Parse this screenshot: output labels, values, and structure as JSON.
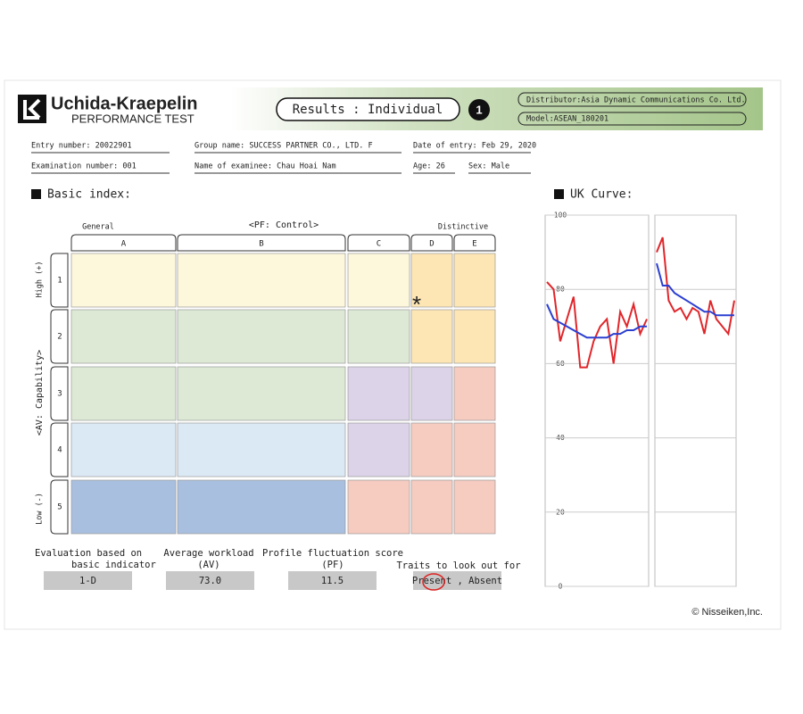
{
  "header": {
    "brand": "Uchida-Kraepelin",
    "subbrand": "PERFORMANCE TEST",
    "title": "Results : Individual",
    "badge": "1",
    "distributor": "Distributor:Asia Dynamic Communications Co. Ltd.",
    "model": "Model:ASEAN_180201"
  },
  "info": {
    "entry": "Entry number: 20022901",
    "group": "Group name: SUCCESS PARTNER CO., LTD. F",
    "date": "Date of entry: Feb 29, 2020",
    "exam": "Examination number: 001",
    "name": "Name of examinee: Chau Hoai Nam",
    "age": "Age: 26",
    "sex": "Sex: Male"
  },
  "basic_index": {
    "heading": "Basic index:",
    "general": "General",
    "control": "<PF: Control>",
    "distinctive": "Distinctive",
    "columns": [
      "A",
      "B",
      "C",
      "D",
      "E"
    ],
    "rows": [
      "1",
      "2",
      "3",
      "4",
      "5"
    ],
    "high": "High (+)",
    "capability": "<AV: Capability>",
    "low": "Low (-)",
    "marker": "*"
  },
  "results": [
    {
      "label": [
        "Evaluation based on",
        "basic indicator"
      ],
      "value": "1-D"
    },
    {
      "label": [
        "Average workload",
        "(AV)"
      ],
      "value": "73.0"
    },
    {
      "label": [
        "Profile fluctuation score",
        "(PF)"
      ],
      "value": "11.5"
    },
    {
      "label": [
        "Traits to look out for"
      ],
      "value": "Present , Absent"
    }
  ],
  "chart_data": {
    "type": "line",
    "title": "UK Curve:",
    "ylim": [
      0,
      100
    ],
    "yticks": [
      0,
      20,
      40,
      60,
      80,
      100
    ],
    "grid": true,
    "panels": [
      {
        "series": [
          {
            "color": "#e0262b",
            "values": [
              82,
              80,
              66,
              72,
              78,
              59,
              59,
              66,
              70,
              72,
              60,
              74,
              70,
              76,
              68,
              72
            ]
          },
          {
            "color": "#2b3fd1",
            "values": [
              76,
              72,
              71,
              70,
              69,
              68,
              67,
              67,
              67,
              67,
              68,
              68,
              69,
              69,
              70,
              70
            ]
          }
        ]
      },
      {
        "series": [
          {
            "color": "#e0262b",
            "values": [
              90,
              94,
              77,
              74,
              75,
              72,
              75,
              74,
              68,
              77,
              72,
              70,
              68,
              77
            ]
          },
          {
            "color": "#2b3fd1",
            "values": [
              87,
              81,
              81,
              79,
              78,
              77,
              76,
              75,
              74,
              74,
              73,
              73,
              73,
              73
            ]
          }
        ]
      }
    ]
  },
  "footer": {
    "copyright": "© Nisseiken,Inc."
  }
}
